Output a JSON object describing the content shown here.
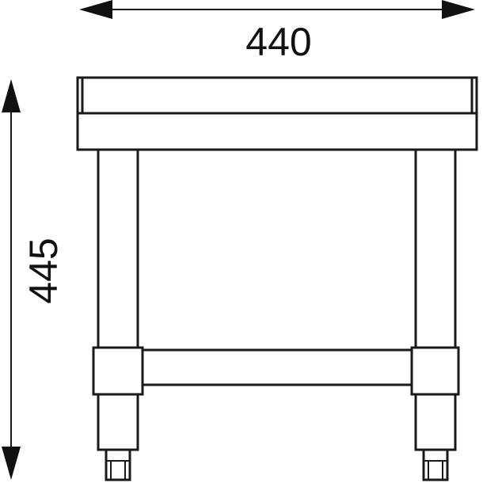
{
  "dimensions": {
    "width_label": "440",
    "height_label": "445"
  },
  "colors": {
    "line": "#1a1a1a",
    "background": "#ffffff"
  }
}
